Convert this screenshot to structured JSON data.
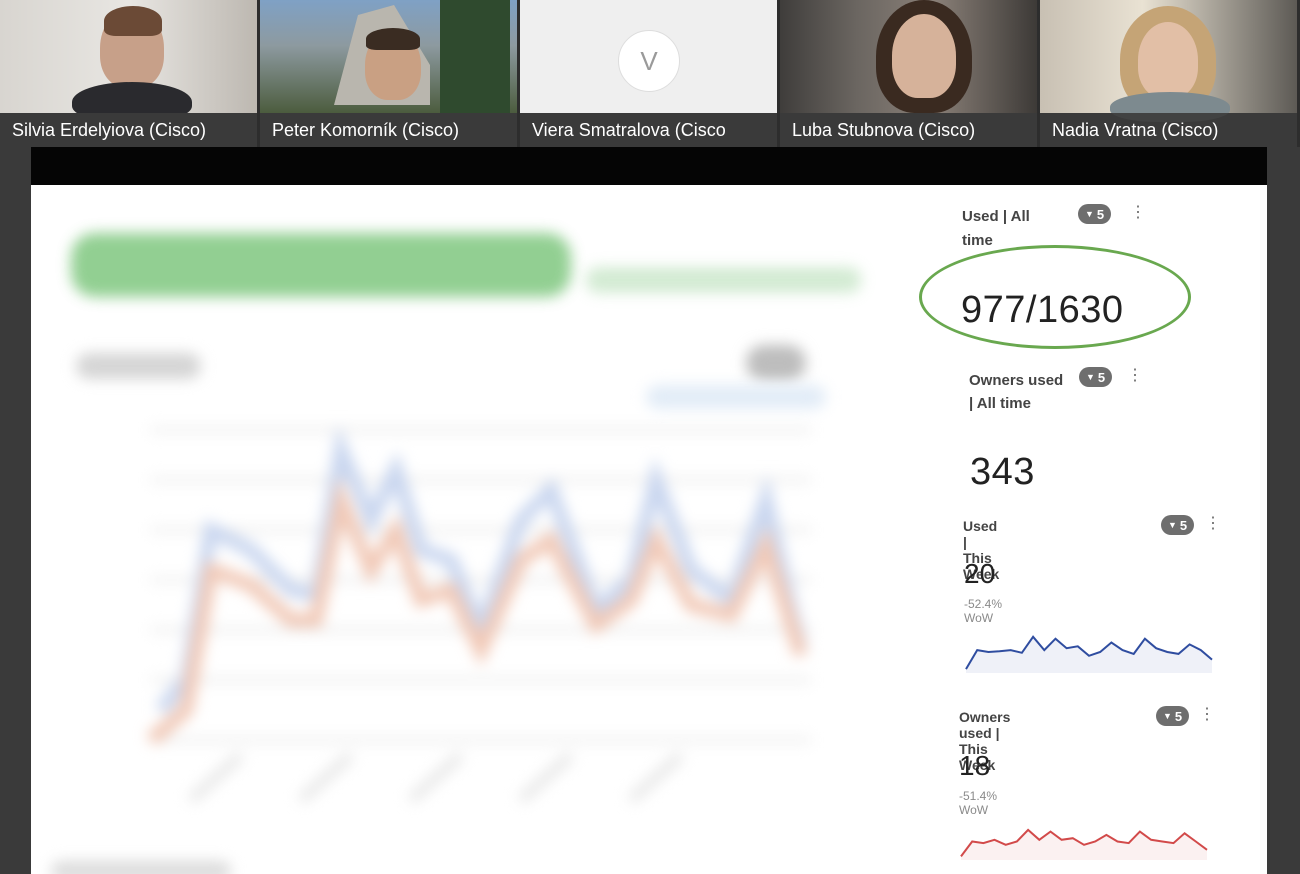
{
  "participants": [
    {
      "name": "Silvia Erdelyiova (Cisco)",
      "type": "video"
    },
    {
      "name": "Peter Komorník (Cisco)",
      "type": "video"
    },
    {
      "name": "Viera Smatralova (Cisco",
      "type": "avatar",
      "initial": "V"
    },
    {
      "name": "Luba Stubnova (Cisco)",
      "type": "video"
    },
    {
      "name": "Nadia Vratna (Cisco)",
      "type": "video"
    }
  ],
  "metrics": {
    "used_all_time": {
      "title_line1": "Used | All",
      "title_line2": "time",
      "filter_count": "5",
      "value": "977/1630"
    },
    "owners_used_all_time": {
      "title_line1": "Owners used",
      "title_line2": "| All time",
      "filter_count": "5",
      "value": "343"
    },
    "used_this_week": {
      "title": "Used | This Week",
      "filter_count": "5",
      "value": "20",
      "wow": "-52.4% WoW",
      "spark_color": "#2f4da0",
      "sparkline": [
        0.05,
        0.55,
        0.5,
        0.52,
        0.55,
        0.48,
        0.9,
        0.55,
        0.85,
        0.6,
        0.65,
        0.4,
        0.5,
        0.75,
        0.55,
        0.45,
        0.85,
        0.6,
        0.5,
        0.45,
        0.7,
        0.55,
        0.3
      ]
    },
    "owners_used_this_week": {
      "title": "Owners used | This Week",
      "filter_count": "5",
      "value": "18",
      "wow": "-51.4% WoW",
      "spark_color": "#d24a4a",
      "sparkline": [
        0.05,
        0.5,
        0.45,
        0.55,
        0.4,
        0.5,
        0.85,
        0.55,
        0.8,
        0.55,
        0.6,
        0.4,
        0.5,
        0.7,
        0.5,
        0.45,
        0.8,
        0.55,
        0.5,
        0.45,
        0.75,
        0.5,
        0.25
      ]
    }
  },
  "colors": {
    "highlight_circle": "#69a84f",
    "badge_bg": "#6e6e6e"
  },
  "icons": {
    "filter": "filter-icon",
    "menu": "more-vertical-icon"
  }
}
